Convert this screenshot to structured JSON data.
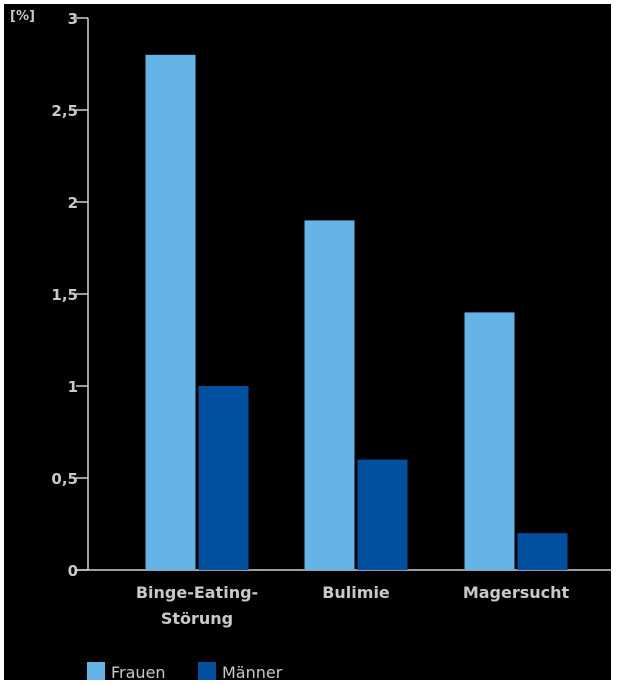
{
  "chart_data": {
    "type": "bar",
    "ylabel": "[%]",
    "ylim": [
      0,
      3
    ],
    "yticks": [
      0,
      0.5,
      1,
      1.5,
      2,
      2.5,
      3
    ],
    "ytick_labels": [
      "0",
      "0,5",
      "1",
      "1,5",
      "2",
      "2,5",
      "3"
    ],
    "categories": [
      [
        "Binge-Eating-",
        "Störung"
      ],
      [
        "Bulimie"
      ],
      [
        "Magersucht"
      ]
    ],
    "series": [
      {
        "name": "Frauen",
        "color": "#64b4e8",
        "values": [
          2.8,
          1.9,
          1.4
        ]
      },
      {
        "name": "Männer",
        "color": "#0050a0",
        "values": [
          1.0,
          0.6,
          0.2
        ]
      }
    ],
    "legend_position": "bottom-left",
    "grid": false,
    "axis_color": "#cfcfcf",
    "background": "#000000"
  }
}
